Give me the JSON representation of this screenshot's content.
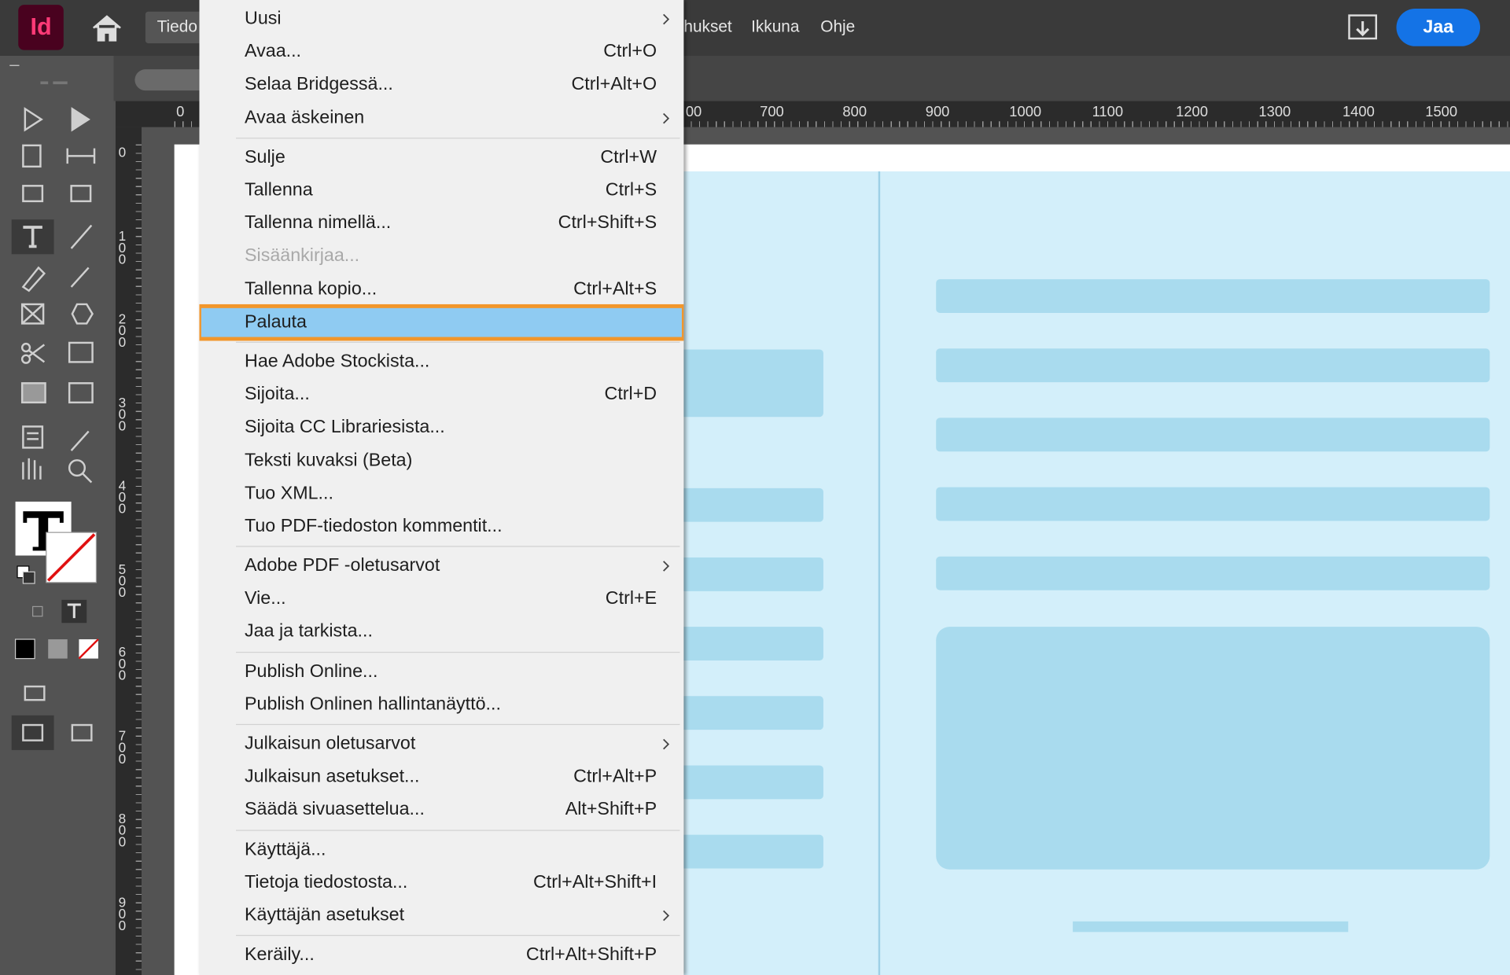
{
  "app": {
    "logo": "Id",
    "menu_bar": [
      "Tiedo",
      "hukset",
      "Ikkuna",
      "Ohje"
    ],
    "share_button": "Jaa"
  },
  "rulers": {
    "horizontal": [
      "0",
      "00",
      "700",
      "800",
      "900",
      "1000",
      "1100",
      "1200",
      "1300",
      "1400",
      "1500"
    ],
    "vertical": [
      "0",
      "100",
      "200",
      "300",
      "400",
      "500",
      "600",
      "700",
      "800",
      "900"
    ]
  },
  "file_menu": {
    "groups": [
      [
        {
          "label": "Uusi",
          "submenu": true
        },
        {
          "label": "Avaa...",
          "shortcut": "Ctrl+O"
        },
        {
          "label": "Selaa Bridgessä...",
          "shortcut": "Ctrl+Alt+O"
        },
        {
          "label": "Avaa äskeinen",
          "submenu": true
        }
      ],
      [
        {
          "label": "Sulje",
          "shortcut": "Ctrl+W"
        },
        {
          "label": "Tallenna",
          "shortcut": "Ctrl+S"
        },
        {
          "label": "Tallenna nimellä...",
          "shortcut": "Ctrl+Shift+S"
        },
        {
          "label": "Sisäänkirjaa...",
          "disabled": true
        },
        {
          "label": "Tallenna kopio...",
          "shortcut": "Ctrl+Alt+S"
        },
        {
          "label": "Palauta",
          "highlighted": true
        }
      ],
      [
        {
          "label": "Hae Adobe Stockista..."
        },
        {
          "label": "Sijoita...",
          "shortcut": "Ctrl+D"
        },
        {
          "label": "Sijoita CC Librariesista..."
        },
        {
          "label": "Teksti kuvaksi (Beta)"
        },
        {
          "label": "Tuo XML..."
        },
        {
          "label": "Tuo PDF-tiedoston kommentit..."
        }
      ],
      [
        {
          "label": "Adobe PDF -oletusarvot",
          "submenu": true
        },
        {
          "label": "Vie...",
          "shortcut": "Ctrl+E"
        },
        {
          "label": "Jaa ja tarkista..."
        }
      ],
      [
        {
          "label": "Publish Online..."
        },
        {
          "label": "Publish Onlinen hallintanäyttö..."
        }
      ],
      [
        {
          "label": "Julkaisun oletusarvot",
          "submenu": true
        },
        {
          "label": "Julkaisun asetukset...",
          "shortcut": "Ctrl+Alt+P"
        },
        {
          "label": "Säädä sivuasettelua...",
          "shortcut": "Alt+Shift+P"
        }
      ],
      [
        {
          "label": "Käyttäjä..."
        },
        {
          "label": "Tietoja tiedostosta...",
          "shortcut": "Ctrl+Alt+Shift+I"
        },
        {
          "label": "Käyttäjän asetukset",
          "submenu": true
        }
      ],
      [
        {
          "label": "Keräily...",
          "shortcut": "Ctrl+Alt+Shift+P"
        }
      ]
    ]
  }
}
